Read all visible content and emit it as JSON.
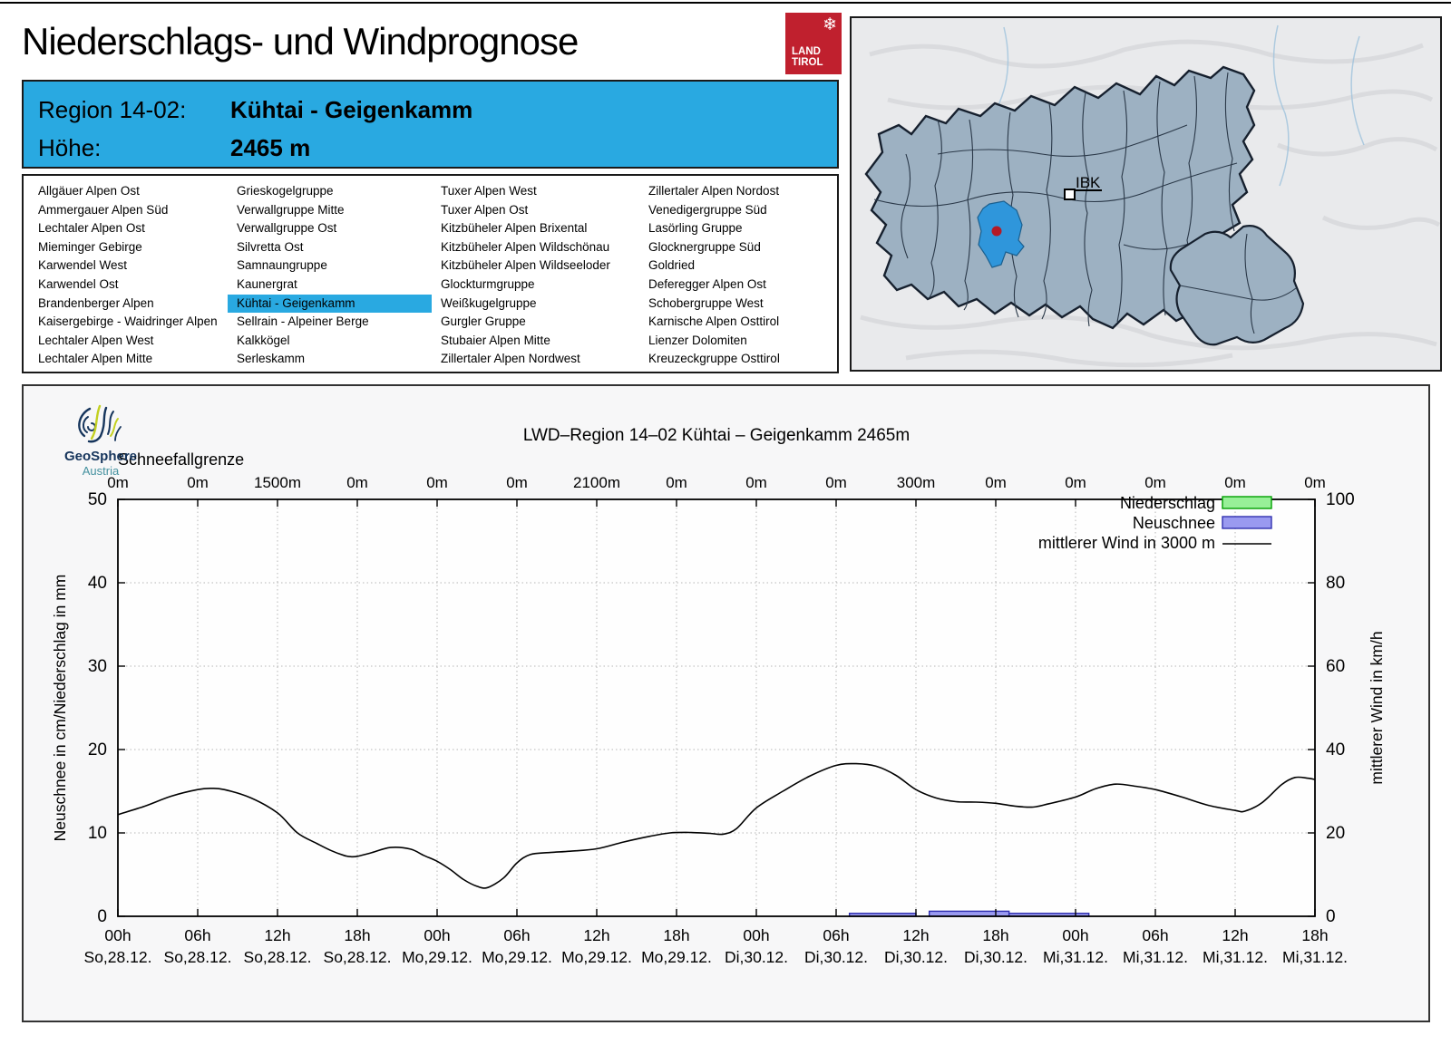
{
  "header": {
    "title": "Niederschlags- und Windprognose",
    "logo": {
      "line1": "LAND",
      "line2": "TIROL",
      "color": "#c0202e"
    }
  },
  "info_box": {
    "region_label": "Region 14-02:",
    "region_value": "Kühtai - Geigenkamm",
    "altitude_label": "Höhe:",
    "altitude_value": "2465 m",
    "background": "#29a9e1"
  },
  "region_list": {
    "selected": "Kühtai - Geigenkamm",
    "highlight_color": "#29a9e1",
    "columns": [
      [
        "Allgäuer Alpen Ost",
        "Ammergauer Alpen Süd",
        "Lechtaler Alpen Ost",
        "Mieminger Gebirge",
        "Karwendel West",
        "Karwendel Ost",
        "Brandenberger Alpen",
        "Kaisergebirge - Waidringer Alpen",
        "Lechtaler Alpen West",
        "Lechtaler Alpen Mitte"
      ],
      [
        "Grieskogelgruppe",
        "Verwallgruppe Mitte",
        "Verwallgruppe Ost",
        "Silvretta Ost",
        "Samnaungruppe",
        "Kaunergrat",
        "Kühtai - Geigenkamm",
        "Sellrain - Alpeiner Berge",
        "Kalkkögel",
        "Serleskamm"
      ],
      [
        "Tuxer Alpen West",
        "Tuxer Alpen Ost",
        "Kitzbüheler Alpen Brixental",
        "Kitzbüheler Alpen Wildschönau",
        "Kitzbüheler Alpen Wildseeloder",
        "Glockturmgruppe",
        "Weißkugelgruppe",
        "Gurgler Gruppe",
        "Stubaier Alpen Mitte",
        "Zillertaler Alpen Nordwest"
      ],
      [
        "Zillertaler Alpen Nordost",
        "Venedigergruppe Süd",
        "Lasörling Gruppe",
        "Glocknergruppe Süd",
        "Goldried",
        "Deferegger Alpen Ost",
        "Schobergruppe West",
        "Karnische Alpen Osttirol",
        "Lienzer Dolomiten",
        "Kreuzeckgruppe Osttirol"
      ]
    ]
  },
  "map": {
    "city_label": "IBK",
    "region_fill": "#9db1c2",
    "highlight_fill": "#2f96db",
    "marker_color": "#b51a26"
  },
  "chart": {
    "logo_name": "GeoSphere",
    "logo_sub": "Austria"
  },
  "chart_data": {
    "type": "line",
    "title": "LWD–Region 14–02 Kühtai – Geigenkamm 2465m",
    "top_axis": {
      "label": "Schneefallgrenze",
      "values": [
        "0m",
        "0m",
        "1500m",
        "0m",
        "0m",
        "0m",
        "2100m",
        "0m",
        "0m",
        "0m",
        "300m",
        "0m",
        "0m",
        "0m",
        "0m",
        "0m"
      ],
      "values_m": [
        0,
        0,
        1500,
        0,
        0,
        0,
        2100,
        0,
        0,
        0,
        300,
        0,
        0,
        0,
        0,
        0
      ]
    },
    "x_axis": {
      "hours_range": [
        0,
        90
      ],
      "tick_every_hours": 6,
      "hour_labels": [
        "00h",
        "06h",
        "12h",
        "18h",
        "00h",
        "06h",
        "12h",
        "18h",
        "00h",
        "06h",
        "12h",
        "18h",
        "00h",
        "06h",
        "12h",
        "18h"
      ],
      "date_labels": [
        "So,28.12.",
        "So,28.12.",
        "So,28.12.",
        "So,28.12.",
        "Mo,29.12.",
        "Mo,29.12.",
        "Mo,29.12.",
        "Mo,29.12.",
        "Di,30.12.",
        "Di,30.12.",
        "Di,30.12.",
        "Di,30.12.",
        "Mi,31.12.",
        "Mi,31.12.",
        "Mi,31.12.",
        "Mi,31.12."
      ]
    },
    "y_left": {
      "label": "Neuschnee in cm/Niederschlag in mm",
      "min": 0,
      "max": 50,
      "ticks": [
        0,
        10,
        20,
        30,
        40,
        50
      ]
    },
    "y_right": {
      "label": "mittlerer Wind in km/h",
      "min": 0,
      "max": 100,
      "ticks": [
        0,
        20,
        40,
        60,
        80,
        100
      ]
    },
    "legend": [
      {
        "label": "Niederschlag",
        "type": "box",
        "fill": "#98f098",
        "border": "#00a000"
      },
      {
        "label": "Neuschnee",
        "type": "box",
        "fill": "#9a9af0",
        "border": "#3030b0"
      },
      {
        "label": "mittlerer Wind in 3000 m",
        "type": "line",
        "color": "#000000"
      }
    ],
    "series": {
      "niederschlag_mm_segments": [],
      "neuschnee_cm_segments": [
        {
          "from_hour": 55,
          "to_hour": 60,
          "cm": 0.25
        },
        {
          "from_hour": 61,
          "to_hour": 67,
          "cm": 0.5
        },
        {
          "from_hour": 67,
          "to_hour": 73,
          "cm": 0.25
        }
      ],
      "wind_kmh": [
        [
          0,
          24.4
        ],
        [
          2,
          26.4
        ],
        [
          4,
          28.8
        ],
        [
          6,
          30.4
        ],
        [
          7,
          30.7
        ],
        [
          8,
          30.4
        ],
        [
          10,
          28.4
        ],
        [
          12,
          24.8
        ],
        [
          13.5,
          20.0
        ],
        [
          15,
          17.4
        ],
        [
          16,
          15.8
        ],
        [
          17,
          14.6
        ],
        [
          17.5,
          14.3
        ],
        [
          18,
          14.4
        ],
        [
          19,
          15.2
        ],
        [
          20.5,
          16.5
        ],
        [
          22,
          16.1
        ],
        [
          23,
          14.6
        ],
        [
          24,
          13.2
        ],
        [
          25,
          11.2
        ],
        [
          26,
          8.8
        ],
        [
          27,
          7.2
        ],
        [
          27.8,
          6.9
        ],
        [
          29,
          9.2
        ],
        [
          30,
          12.8
        ],
        [
          31,
          14.8
        ],
        [
          32.5,
          15.3
        ],
        [
          34,
          15.6
        ],
        [
          36,
          16.2
        ],
        [
          38,
          17.8
        ],
        [
          40,
          19.2
        ],
        [
          41.5,
          20.0
        ],
        [
          43,
          20.1
        ],
        [
          44.5,
          19.9
        ],
        [
          45.5,
          19.7
        ],
        [
          46.5,
          21.0
        ],
        [
          48,
          26.0
        ],
        [
          50,
          30.0
        ],
        [
          52,
          33.6
        ],
        [
          54,
          36.2
        ],
        [
          55.5,
          36.6
        ],
        [
          57,
          36.0
        ],
        [
          58.5,
          33.8
        ],
        [
          60,
          30.4
        ],
        [
          61.5,
          28.4
        ],
        [
          63,
          27.5
        ],
        [
          64.5,
          27.4
        ],
        [
          66,
          27.1
        ],
        [
          67.5,
          26.4
        ],
        [
          68.8,
          26.2
        ],
        [
          70,
          27.0
        ],
        [
          72,
          28.6
        ],
        [
          73.5,
          30.6
        ],
        [
          75,
          31.7
        ],
        [
          76.5,
          31.2
        ],
        [
          78,
          30.4
        ],
        [
          80,
          28.6
        ],
        [
          82,
          26.6
        ],
        [
          84,
          25.4
        ],
        [
          84.7,
          25.2
        ],
        [
          86,
          27.2
        ],
        [
          87.5,
          31.6
        ],
        [
          88.5,
          33.3
        ],
        [
          89.5,
          33.1
        ],
        [
          90,
          32.8
        ]
      ]
    }
  }
}
